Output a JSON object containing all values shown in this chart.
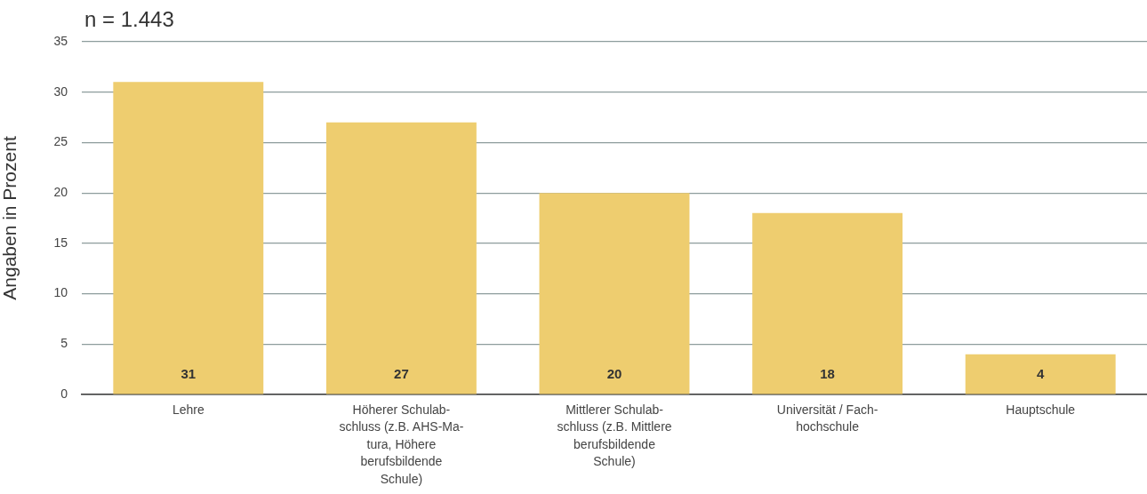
{
  "chart_data": {
    "type": "bar",
    "title": "n = 1.443",
    "ylabel": "Angaben in Prozent",
    "categories": [
      "Lehre",
      "Höherer Schulab-\nschluss (z.B. AHS-Ma-\ntura, Höhere\nberufsbildende\nSchule)",
      "Mittlerer Schulab-\nschluss (z.B. Mittlere\nberufsbildende\nSchule)",
      "Universität / Fach-\nhochschule",
      "Hauptschule"
    ],
    "values": [
      31,
      27,
      20,
      18,
      4
    ],
    "color": "#eecd6f",
    "ylim": [
      0,
      35
    ],
    "yticks": [
      0,
      5,
      10,
      15,
      20,
      25,
      30,
      35
    ],
    "grid": "y",
    "data_labels": true
  }
}
